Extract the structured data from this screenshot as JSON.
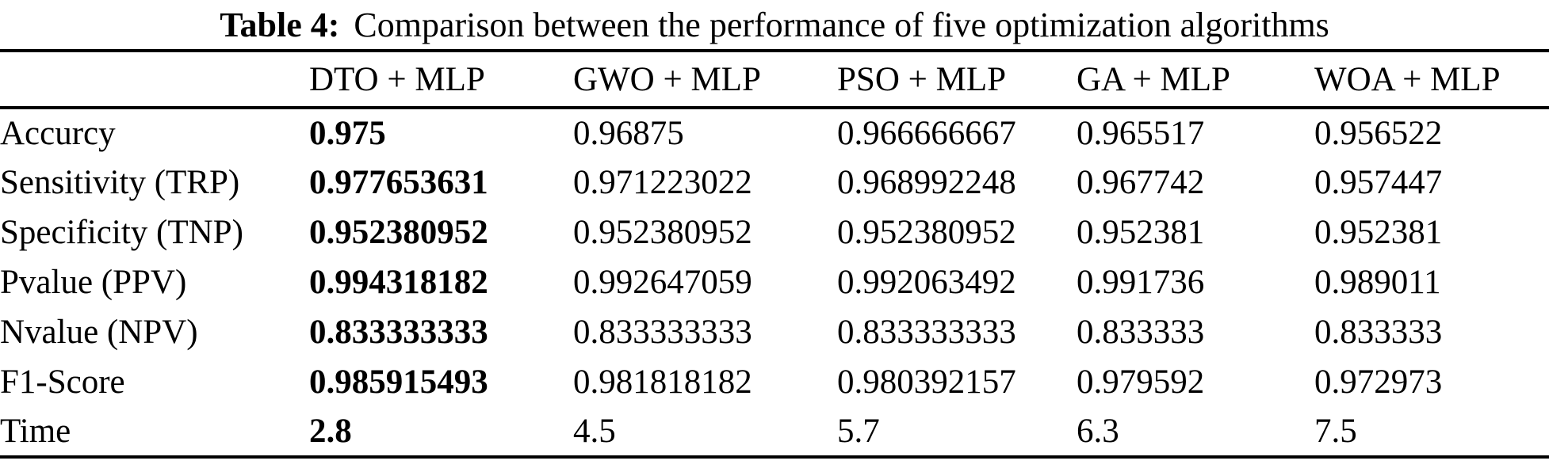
{
  "caption": {
    "label": "Table 4:",
    "text": "Comparison between the performance of five optimization algorithms"
  },
  "colors": {
    "text": "#000000",
    "background": "#ffffff",
    "rule": "#000000"
  },
  "chart_data": {
    "type": "table",
    "title": "Table 4: Comparison between the performance of five optimization algorithms",
    "columns": [
      "",
      "DTO + MLP",
      "GWO + MLP",
      "PSO + MLP",
      "GA + MLP",
      "WOA + MLP"
    ],
    "best_column": "DTO + MLP",
    "rows": [
      {
        "metric": "Accurcy",
        "values": [
          "0.975",
          "0.96875",
          "0.966666667",
          "0.965517",
          "0.956522"
        ]
      },
      {
        "metric": "Sensitivity (TRP)",
        "values": [
          "0.977653631",
          "0.971223022",
          "0.968992248",
          "0.967742",
          "0.957447"
        ]
      },
      {
        "metric": "Specificity (TNP)",
        "values": [
          "0.952380952",
          "0.952380952",
          "0.952380952",
          "0.952381",
          "0.952381"
        ]
      },
      {
        "metric": "Pvalue (PPV)",
        "values": [
          "0.994318182",
          "0.992647059",
          "0.992063492",
          "0.991736",
          "0.989011"
        ]
      },
      {
        "metric": "Nvalue (NPV)",
        "values": [
          "0.833333333",
          "0.833333333",
          "0.833333333",
          "0.833333",
          "0.833333"
        ]
      },
      {
        "metric": "F1-Score",
        "values": [
          "0.985915493",
          "0.981818182",
          "0.980392157",
          "0.979592",
          "0.972973"
        ]
      },
      {
        "metric": "Time",
        "values": [
          "2.8",
          "4.5",
          "5.7",
          "6.3",
          "7.5"
        ]
      }
    ]
  }
}
